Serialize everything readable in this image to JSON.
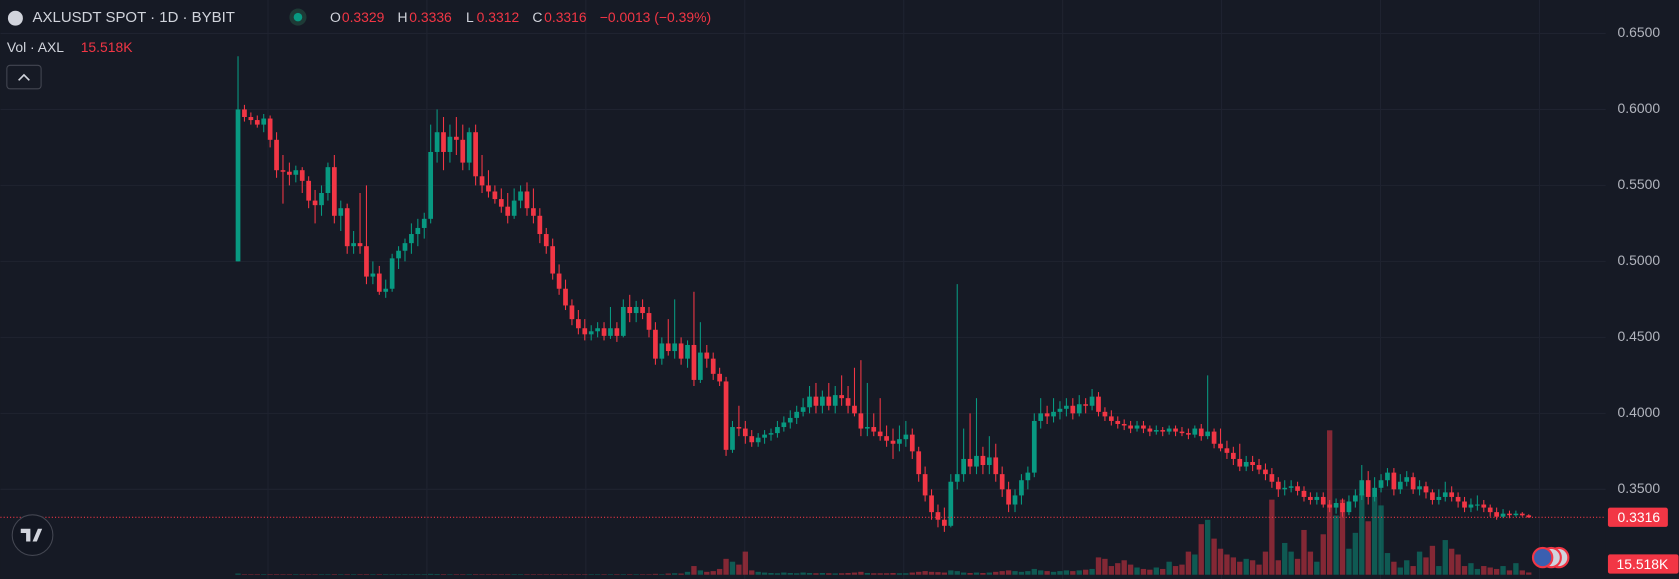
{
  "header": {
    "title": "AXLUSDT SPOT · 1D · BYBIT",
    "ohlc_labels": [
      "O",
      "H",
      "L",
      "C"
    ],
    "change": "−0.0013 (−0.39%)"
  },
  "chart_data": {
    "type": "candlestick",
    "up_color": "#089981",
    "down_color": "#f23645",
    "ylim": [
      0.291,
      0.672
    ],
    "yticks": [
      {
        "value": 0.65,
        "label": "0.6500"
      },
      {
        "value": 0.6,
        "label": "0.6000"
      },
      {
        "value": 0.55,
        "label": "0.5500"
      },
      {
        "value": 0.5,
        "label": "0.5000"
      },
      {
        "value": 0.45,
        "label": "0.4500"
      },
      {
        "value": 0.4,
        "label": "0.4000"
      },
      {
        "value": 0.35,
        "label": "0.3500"
      }
    ],
    "grid": true,
    "candles": [
      [
        0.5,
        0.635,
        0.5,
        0.6
      ],
      [
        0.6,
        0.603,
        0.592,
        0.595
      ],
      [
        0.595,
        0.598,
        0.59,
        0.593
      ],
      [
        0.593,
        0.596,
        0.588,
        0.59
      ],
      [
        0.59,
        0.597,
        0.585,
        0.594
      ],
      [
        0.594,
        0.596,
        0.575,
        0.58
      ],
      [
        0.58,
        0.585,
        0.555,
        0.56
      ],
      [
        0.56,
        0.57,
        0.538,
        0.559
      ],
      [
        0.559,
        0.565,
        0.55,
        0.557
      ],
      [
        0.557,
        0.563,
        0.552,
        0.56
      ],
      [
        0.56,
        0.562,
        0.545,
        0.553
      ],
      [
        0.553,
        0.556,
        0.535,
        0.54
      ],
      [
        0.54,
        0.547,
        0.525,
        0.537
      ],
      [
        0.537,
        0.55,
        0.53,
        0.545
      ],
      [
        0.545,
        0.565,
        0.54,
        0.562
      ],
      [
        0.562,
        0.57,
        0.525,
        0.53
      ],
      [
        0.53,
        0.54,
        0.52,
        0.535
      ],
      [
        0.535,
        0.538,
        0.505,
        0.51
      ],
      [
        0.51,
        0.52,
        0.505,
        0.512
      ],
      [
        0.512,
        0.545,
        0.505,
        0.51
      ],
      [
        0.51,
        0.55,
        0.485,
        0.49
      ],
      [
        0.49,
        0.5,
        0.485,
        0.492
      ],
      [
        0.492,
        0.497,
        0.478,
        0.48
      ],
      [
        0.48,
        0.488,
        0.476,
        0.482
      ],
      [
        0.482,
        0.505,
        0.48,
        0.502
      ],
      [
        0.502,
        0.51,
        0.495,
        0.507
      ],
      [
        0.507,
        0.515,
        0.5,
        0.512
      ],
      [
        0.512,
        0.525,
        0.505,
        0.518
      ],
      [
        0.518,
        0.528,
        0.51,
        0.522
      ],
      [
        0.522,
        0.532,
        0.515,
        0.528
      ],
      [
        0.528,
        0.59,
        0.525,
        0.572
      ],
      [
        0.572,
        0.6,
        0.565,
        0.585
      ],
      [
        0.585,
        0.595,
        0.56,
        0.572
      ],
      [
        0.572,
        0.59,
        0.565,
        0.582
      ],
      [
        0.582,
        0.595,
        0.57,
        0.58
      ],
      [
        0.58,
        0.59,
        0.56,
        0.565
      ],
      [
        0.565,
        0.588,
        0.56,
        0.585
      ],
      [
        0.585,
        0.59,
        0.55,
        0.556
      ],
      [
        0.556,
        0.57,
        0.545,
        0.55
      ],
      [
        0.55,
        0.56,
        0.542,
        0.546
      ],
      [
        0.546,
        0.55,
        0.538,
        0.541
      ],
      [
        0.541,
        0.548,
        0.532,
        0.536
      ],
      [
        0.536,
        0.545,
        0.525,
        0.53
      ],
      [
        0.53,
        0.548,
        0.528,
        0.54
      ],
      [
        0.54,
        0.55,
        0.535,
        0.546
      ],
      [
        0.546,
        0.552,
        0.53,
        0.535
      ],
      [
        0.535,
        0.548,
        0.525,
        0.53
      ],
      [
        0.53,
        0.535,
        0.512,
        0.518
      ],
      [
        0.518,
        0.522,
        0.505,
        0.51
      ],
      [
        0.51,
        0.515,
        0.488,
        0.492
      ],
      [
        0.492,
        0.498,
        0.478,
        0.482
      ],
      [
        0.482,
        0.488,
        0.468,
        0.471
      ],
      [
        0.471,
        0.475,
        0.458,
        0.462
      ],
      [
        0.462,
        0.468,
        0.452,
        0.456
      ],
      [
        0.456,
        0.462,
        0.448,
        0.452
      ],
      [
        0.452,
        0.458,
        0.448,
        0.454
      ],
      [
        0.454,
        0.46,
        0.45,
        0.456
      ],
      [
        0.456,
        0.46,
        0.448,
        0.451
      ],
      [
        0.451,
        0.47,
        0.449,
        0.456
      ],
      [
        0.456,
        0.46,
        0.447,
        0.451
      ],
      [
        0.451,
        0.475,
        0.45,
        0.47
      ],
      [
        0.47,
        0.478,
        0.46,
        0.466
      ],
      [
        0.466,
        0.474,
        0.46,
        0.47
      ],
      [
        0.47,
        0.475,
        0.462,
        0.466
      ],
      [
        0.466,
        0.47,
        0.45,
        0.455
      ],
      [
        0.455,
        0.46,
        0.432,
        0.436
      ],
      [
        0.436,
        0.45,
        0.432,
        0.446
      ],
      [
        0.446,
        0.462,
        0.438,
        0.441
      ],
      [
        0.441,
        0.475,
        0.436,
        0.446
      ],
      [
        0.446,
        0.45,
        0.432,
        0.436
      ],
      [
        0.436,
        0.448,
        0.43,
        0.445
      ],
      [
        0.445,
        0.48,
        0.418,
        0.422
      ],
      [
        0.422,
        0.46,
        0.42,
        0.44
      ],
      [
        0.44,
        0.445,
        0.43,
        0.436
      ],
      [
        0.436,
        0.44,
        0.422,
        0.426
      ],
      [
        0.426,
        0.43,
        0.418,
        0.421
      ],
      [
        0.421,
        0.424,
        0.372,
        0.376
      ],
      [
        0.376,
        0.395,
        0.374,
        0.391
      ],
      [
        0.391,
        0.405,
        0.385,
        0.39
      ],
      [
        0.39,
        0.395,
        0.38,
        0.385
      ],
      [
        0.385,
        0.389,
        0.378,
        0.381
      ],
      [
        0.381,
        0.387,
        0.378,
        0.384
      ],
      [
        0.384,
        0.389,
        0.38,
        0.386
      ],
      [
        0.386,
        0.39,
        0.382,
        0.387
      ],
      [
        0.387,
        0.395,
        0.384,
        0.391
      ],
      [
        0.391,
        0.398,
        0.388,
        0.394
      ],
      [
        0.394,
        0.402,
        0.39,
        0.397
      ],
      [
        0.397,
        0.405,
        0.393,
        0.401
      ],
      [
        0.401,
        0.41,
        0.398,
        0.404
      ],
      [
        0.404,
        0.418,
        0.4,
        0.411
      ],
      [
        0.411,
        0.42,
        0.4,
        0.405
      ],
      [
        0.405,
        0.415,
        0.4,
        0.411
      ],
      [
        0.411,
        0.42,
        0.402,
        0.405
      ],
      [
        0.405,
        0.418,
        0.4,
        0.412
      ],
      [
        0.412,
        0.425,
        0.405,
        0.41
      ],
      [
        0.41,
        0.418,
        0.4,
        0.405
      ],
      [
        0.405,
        0.43,
        0.398,
        0.4
      ],
      [
        0.4,
        0.435,
        0.385,
        0.39
      ],
      [
        0.39,
        0.42,
        0.385,
        0.391
      ],
      [
        0.391,
        0.4,
        0.385,
        0.388
      ],
      [
        0.388,
        0.41,
        0.382,
        0.385
      ],
      [
        0.385,
        0.392,
        0.378,
        0.382
      ],
      [
        0.382,
        0.39,
        0.37,
        0.38
      ],
      [
        0.38,
        0.392,
        0.375,
        0.383
      ],
      [
        0.383,
        0.395,
        0.378,
        0.386
      ],
      [
        0.386,
        0.39,
        0.37,
        0.375
      ],
      [
        0.375,
        0.378,
        0.355,
        0.36
      ],
      [
        0.36,
        0.365,
        0.342,
        0.346
      ],
      [
        0.346,
        0.35,
        0.33,
        0.335
      ],
      [
        0.335,
        0.34,
        0.325,
        0.33
      ],
      [
        0.33,
        0.338,
        0.322,
        0.326
      ],
      [
        0.326,
        0.36,
        0.325,
        0.355
      ],
      [
        0.355,
        0.485,
        0.35,
        0.36
      ],
      [
        0.36,
        0.39,
        0.355,
        0.37
      ],
      [
        0.37,
        0.4,
        0.36,
        0.365
      ],
      [
        0.365,
        0.41,
        0.36,
        0.372
      ],
      [
        0.372,
        0.378,
        0.36,
        0.366
      ],
      [
        0.366,
        0.385,
        0.36,
        0.371
      ],
      [
        0.371,
        0.38,
        0.355,
        0.36
      ],
      [
        0.36,
        0.365,
        0.345,
        0.35
      ],
      [
        0.35,
        0.355,
        0.335,
        0.34
      ],
      [
        0.34,
        0.35,
        0.335,
        0.346
      ],
      [
        0.346,
        0.36,
        0.34,
        0.356
      ],
      [
        0.356,
        0.365,
        0.35,
        0.361
      ],
      [
        0.361,
        0.4,
        0.358,
        0.395
      ],
      [
        0.395,
        0.41,
        0.39,
        0.4
      ],
      [
        0.4,
        0.405,
        0.393,
        0.398
      ],
      [
        0.398,
        0.41,
        0.394,
        0.401
      ],
      [
        0.401,
        0.408,
        0.396,
        0.403
      ],
      [
        0.403,
        0.41,
        0.398,
        0.405
      ],
      [
        0.405,
        0.41,
        0.396,
        0.4
      ],
      [
        0.4,
        0.412,
        0.398,
        0.406
      ],
      [
        0.406,
        0.41,
        0.4,
        0.405
      ],
      [
        0.405,
        0.416,
        0.402,
        0.411
      ],
      [
        0.411,
        0.414,
        0.398,
        0.401
      ],
      [
        0.401,
        0.404,
        0.395,
        0.398
      ],
      [
        0.398,
        0.402,
        0.392,
        0.395
      ],
      [
        0.395,
        0.398,
        0.39,
        0.393
      ],
      [
        0.393,
        0.396,
        0.389,
        0.392
      ],
      [
        0.392,
        0.395,
        0.387,
        0.39
      ],
      [
        0.39,
        0.395,
        0.388,
        0.392
      ],
      [
        0.392,
        0.395,
        0.387,
        0.39
      ],
      [
        0.39,
        0.392,
        0.385,
        0.388
      ],
      [
        0.388,
        0.392,
        0.386,
        0.389
      ],
      [
        0.389,
        0.391,
        0.385,
        0.388
      ],
      [
        0.388,
        0.392,
        0.386,
        0.39
      ],
      [
        0.39,
        0.392,
        0.385,
        0.388
      ],
      [
        0.388,
        0.391,
        0.385,
        0.387
      ],
      [
        0.387,
        0.39,
        0.383,
        0.386
      ],
      [
        0.386,
        0.392,
        0.384,
        0.39
      ],
      [
        0.39,
        0.393,
        0.382,
        0.385
      ],
      [
        0.385,
        0.425,
        0.383,
        0.388
      ],
      [
        0.388,
        0.39,
        0.377,
        0.38
      ],
      [
        0.38,
        0.39,
        0.375,
        0.377
      ],
      [
        0.377,
        0.382,
        0.37,
        0.374
      ],
      [
        0.374,
        0.378,
        0.366,
        0.37
      ],
      [
        0.37,
        0.38,
        0.362,
        0.365
      ],
      [
        0.365,
        0.372,
        0.362,
        0.368
      ],
      [
        0.368,
        0.372,
        0.362,
        0.366
      ],
      [
        0.366,
        0.37,
        0.36,
        0.363
      ],
      [
        0.363,
        0.367,
        0.356,
        0.36
      ],
      [
        0.36,
        0.364,
        0.351,
        0.355
      ],
      [
        0.355,
        0.358,
        0.345,
        0.35
      ],
      [
        0.35,
        0.356,
        0.346,
        0.351
      ],
      [
        0.351,
        0.356,
        0.348,
        0.352
      ],
      [
        0.352,
        0.355,
        0.346,
        0.349
      ],
      [
        0.349,
        0.352,
        0.342,
        0.345
      ],
      [
        0.345,
        0.348,
        0.34,
        0.343
      ],
      [
        0.343,
        0.348,
        0.34,
        0.345
      ],
      [
        0.345,
        0.348,
        0.338,
        0.34
      ],
      [
        0.34,
        0.343,
        0.335,
        0.338
      ],
      [
        0.338,
        0.344,
        0.334,
        0.341
      ],
      [
        0.341,
        0.344,
        0.332,
        0.335
      ],
      [
        0.335,
        0.346,
        0.333,
        0.342
      ],
      [
        0.342,
        0.35,
        0.338,
        0.346
      ],
      [
        0.346,
        0.366,
        0.343,
        0.356
      ],
      [
        0.356,
        0.362,
        0.34,
        0.345
      ],
      [
        0.345,
        0.358,
        0.342,
        0.351
      ],
      [
        0.351,
        0.36,
        0.348,
        0.356
      ],
      [
        0.356,
        0.364,
        0.352,
        0.361
      ],
      [
        0.361,
        0.364,
        0.346,
        0.35
      ],
      [
        0.35,
        0.36,
        0.347,
        0.355
      ],
      [
        0.355,
        0.362,
        0.352,
        0.358
      ],
      [
        0.358,
        0.361,
        0.347,
        0.35
      ],
      [
        0.35,
        0.356,
        0.346,
        0.352
      ],
      [
        0.352,
        0.355,
        0.344,
        0.348
      ],
      [
        0.348,
        0.35,
        0.34,
        0.343
      ],
      [
        0.343,
        0.35,
        0.34,
        0.345
      ],
      [
        0.345,
        0.355,
        0.342,
        0.348
      ],
      [
        0.348,
        0.352,
        0.342,
        0.345
      ],
      [
        0.345,
        0.348,
        0.338,
        0.342
      ],
      [
        0.342,
        0.345,
        0.335,
        0.338
      ],
      [
        0.338,
        0.344,
        0.335,
        0.34
      ],
      [
        0.34,
        0.346,
        0.336,
        0.34
      ],
      [
        0.34,
        0.343,
        0.335,
        0.338
      ],
      [
        0.338,
        0.34,
        0.332,
        0.335
      ],
      [
        0.335,
        0.338,
        0.33,
        0.332
      ],
      [
        0.332,
        0.337,
        0.331,
        0.334
      ],
      [
        0.334,
        0.336,
        0.331,
        0.333
      ],
      [
        0.333,
        0.336,
        0.332,
        0.334
      ],
      [
        0.334,
        0.335,
        0.332,
        0.3329
      ],
      [
        0.3329,
        0.3336,
        0.3312,
        0.3316
      ]
    ],
    "volume": {
      "name": "Vol · AXL",
      "last_label": "15.518K",
      "lim": [
        0,
        3980000
      ],
      "values": [
        8000,
        3000,
        2000,
        2000,
        2000,
        3000,
        4000,
        2000,
        2000,
        2000,
        2000,
        3000,
        2000,
        2000,
        3000,
        4000,
        2000,
        3000,
        2000,
        2000,
        4000,
        3000,
        3000,
        2000,
        3000,
        2000,
        2000,
        2000,
        2000,
        2000,
        6000,
        5000,
        4000,
        3000,
        3000,
        3000,
        4000,
        4000,
        3000,
        2000,
        2000,
        2000,
        2000,
        3000,
        2000,
        2000,
        2000,
        3000,
        3000,
        4000,
        4000,
        3000,
        3000,
        3000,
        2000,
        2000,
        2000,
        2000,
        3000,
        2000,
        3000,
        3000,
        2000,
        2000,
        3000,
        6000,
        4000,
        8000,
        10000,
        8000,
        20000,
        60000,
        30000,
        20000,
        25000,
        40000,
        110000,
        90000,
        70000,
        160000,
        30000,
        20000,
        15000,
        12000,
        10000,
        15000,
        12000,
        10000,
        15000,
        12000,
        10000,
        12000,
        10000,
        9000,
        10000,
        12000,
        15000,
        20000,
        12000,
        10000,
        10000,
        10000,
        12000,
        10000,
        10000,
        15000,
        20000,
        25000,
        20000,
        18000,
        15000,
        30000,
        25000,
        15000,
        12000,
        15000,
        12000,
        15000,
        20000,
        25000,
        30000,
        25000,
        20000,
        25000,
        40000,
        30000,
        25000,
        20000,
        25000,
        30000,
        25000,
        30000,
        35000,
        40000,
        120000,
        110000,
        60000,
        80000,
        100000,
        70000,
        50000,
        40000,
        35000,
        50000,
        40000,
        90000,
        60000,
        70000,
        160000,
        140000,
        350000,
        380000,
        250000,
        180000,
        140000,
        120000,
        90000,
        110000,
        100000,
        70000,
        160000,
        520000,
        100000,
        220000,
        160000,
        110000,
        310000,
        160000,
        90000,
        280000,
        1000000,
        410000,
        520000,
        180000,
        290000,
        560000,
        370000,
        540000,
        480000,
        150000,
        90000,
        50000,
        100000,
        60000,
        160000,
        120000,
        200000,
        60000,
        240000,
        180000,
        140000,
        60000,
        80000,
        40000,
        60000,
        50000,
        40000,
        60000,
        30000,
        80000,
        30000,
        15518
      ]
    }
  }
}
